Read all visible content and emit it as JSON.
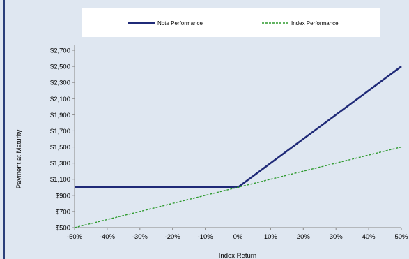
{
  "chart_data": {
    "type": "line",
    "title": "",
    "xlabel": "Index Return",
    "ylabel": "Payment at Maturity",
    "x": [
      "-50%",
      "-40%",
      "-30%",
      "-20%",
      "-10%",
      "0%",
      "10%",
      "20%",
      "30%",
      "40%",
      "50%"
    ],
    "x_values": [
      -50,
      -40,
      -30,
      -20,
      -10,
      0,
      10,
      20,
      30,
      40,
      50
    ],
    "xlim": [
      -50,
      50
    ],
    "ylim": [
      500,
      2700
    ],
    "y_ticks": [
      "$500",
      "$700",
      "$900",
      "$1,100",
      "$1,300",
      "$1,500",
      "$1,700",
      "$1,900",
      "$2,100",
      "$2,300",
      "$2,500",
      "$2,700"
    ],
    "y_tick_values": [
      500,
      700,
      900,
      1100,
      1300,
      1500,
      1700,
      1900,
      2100,
      2300,
      2500,
      2700
    ],
    "grid": false,
    "legend_position": "top",
    "series": [
      {
        "name": "Note Performance",
        "color": "#1f2a78",
        "style": "solid",
        "values": [
          1000,
          1000,
          1000,
          1000,
          1000,
          1000,
          1300,
          1600,
          1900,
          2200,
          2500
        ]
      },
      {
        "name": "Index Performance",
        "color": "#2e9a2e",
        "style": "dashed",
        "values": [
          500,
          600,
          700,
          800,
          900,
          1000,
          1100,
          1200,
          1300,
          1400,
          1500
        ]
      }
    ]
  }
}
